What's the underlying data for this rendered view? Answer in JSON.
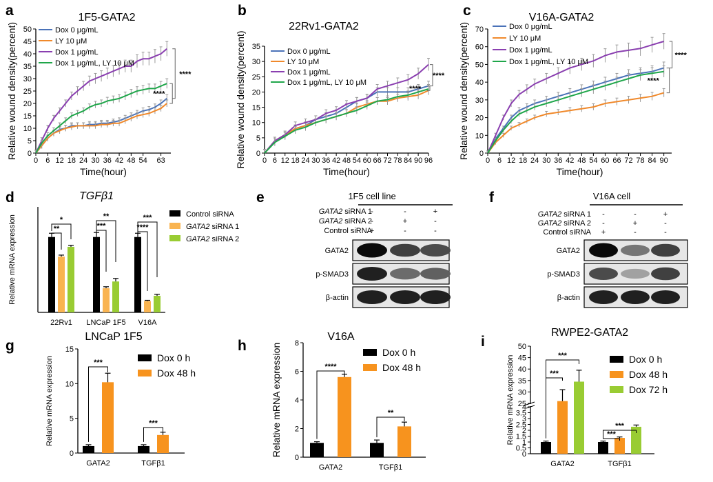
{
  "panels": {
    "a": {
      "label": "a",
      "title": "1F5-GATA2"
    },
    "b": {
      "label": "b",
      "title": "22Rv1-GATA2"
    },
    "c": {
      "label": "c",
      "title": "V16A-GATA2"
    },
    "d": {
      "label": "d",
      "title": "TGFβ1"
    },
    "e": {
      "label": "e",
      "title": "1F5 cell line"
    },
    "f": {
      "label": "f",
      "title": "V16A cell"
    },
    "g": {
      "label": "g",
      "title": "LNCaP 1F5"
    },
    "h": {
      "label": "h",
      "title": "V16A"
    },
    "i": {
      "label": "i",
      "title": "RWPE2-GATA2"
    }
  },
  "colors": {
    "dox0": "#4a72b8",
    "ly": "#f0892b",
    "dox1": "#8a3fb0",
    "combo": "#1fa64a",
    "black": "#000000",
    "orange_bar": "#f7931e",
    "light_orange": "#f9b451",
    "light_green": "#99cc33",
    "error": "#999999"
  },
  "chart_data": [
    {
      "id": "a",
      "type": "line",
      "title": "1F5-GATA2",
      "xlabel": "Time(hour)",
      "ylabel": "Relative wound density(percent)",
      "xlim": [
        0,
        68
      ],
      "ylim": [
        0,
        50
      ],
      "xticks": [
        0,
        6,
        12,
        18,
        24,
        30,
        36,
        42,
        48,
        54,
        63
      ],
      "yticks": [
        0,
        5,
        10,
        15,
        20,
        25,
        30,
        35,
        40,
        45,
        50
      ],
      "legend_position": "top-left",
      "series": [
        {
          "name": "Dox 0 μg/mL",
          "color_key": "dox0",
          "x": [
            0,
            3,
            6,
            9,
            12,
            15,
            18,
            21,
            24,
            27,
            30,
            33,
            36,
            39,
            42,
            45,
            48,
            51,
            54,
            57,
            60,
            63,
            66
          ],
          "y": [
            0,
            3,
            6,
            8,
            9.5,
            10,
            11,
            11,
            11,
            11.5,
            11.5,
            12,
            12,
            12.5,
            13,
            14,
            15,
            16,
            17,
            17.5,
            18.5,
            20,
            22
          ]
        },
        {
          "name": "LY 10 μM",
          "color_key": "ly",
          "x": [
            0,
            3,
            6,
            9,
            12,
            15,
            18,
            21,
            24,
            27,
            30,
            33,
            36,
            39,
            42,
            45,
            48,
            51,
            54,
            57,
            60,
            63,
            66
          ],
          "y": [
            0,
            3,
            6,
            8,
            9,
            10,
            10.5,
            11,
            11,
            11,
            11,
            11.5,
            11.5,
            12,
            12,
            13,
            14,
            15,
            15.5,
            16,
            17,
            18,
            20
          ]
        },
        {
          "name": "Dox 1 μg/mL",
          "color_key": "dox1",
          "x": [
            0,
            3,
            6,
            9,
            12,
            15,
            18,
            21,
            24,
            27,
            30,
            33,
            36,
            39,
            42,
            45,
            48,
            51,
            54,
            57,
            60,
            63,
            66
          ],
          "y": [
            0,
            5,
            10,
            14,
            17,
            20,
            23,
            25,
            27,
            29,
            30,
            31,
            32,
            33,
            34,
            35,
            35,
            37,
            38,
            38,
            39,
            40,
            42
          ]
        },
        {
          "name": "Dox 1 μg/mL, LY 10 μM",
          "color_key": "combo",
          "x": [
            0,
            3,
            6,
            9,
            12,
            15,
            18,
            21,
            24,
            27,
            30,
            33,
            36,
            39,
            42,
            45,
            48,
            51,
            54,
            57,
            60,
            63,
            66
          ],
          "y": [
            0,
            4,
            7,
            9,
            11,
            13,
            15,
            16,
            17,
            18.5,
            19.5,
            20,
            21,
            21.5,
            22,
            23,
            24,
            25,
            25.5,
            26,
            26,
            27,
            28
          ]
        }
      ],
      "annotations": [
        "****",
        "****"
      ]
    },
    {
      "id": "b",
      "type": "line",
      "title": "22Rv1-GATA2",
      "xlabel": "Time(hour)",
      "ylabel": "Relative wound density(percent)",
      "xlim": [
        0,
        96
      ],
      "ylim": [
        0,
        35
      ],
      "xticks": [
        0,
        6,
        12,
        18,
        24,
        30,
        36,
        42,
        48,
        54,
        60,
        66,
        72,
        78,
        84,
        90,
        96
      ],
      "yticks": [
        0,
        5,
        10,
        15,
        20,
        25,
        30,
        35
      ],
      "legend_position": "top-left",
      "series": [
        {
          "name": "Dox 0 μg/mL",
          "color_key": "dox0",
          "x": [
            0,
            6,
            12,
            18,
            24,
            30,
            36,
            42,
            48,
            54,
            60,
            66,
            72,
            78,
            84,
            90,
            96
          ],
          "y": [
            0,
            4,
            6,
            8,
            9,
            11,
            12,
            13,
            15,
            17,
            18,
            20,
            20,
            20,
            20,
            21,
            22
          ]
        },
        {
          "name": "LY 10 μM",
          "color_key": "ly",
          "x": [
            0,
            6,
            12,
            18,
            24,
            30,
            36,
            42,
            48,
            54,
            60,
            66,
            72,
            78,
            84,
            90,
            96
          ],
          "y": [
            0,
            4,
            6,
            8,
            9,
            10,
            11,
            12,
            13,
            15,
            16,
            17,
            17,
            18,
            18.5,
            19,
            20.5
          ]
        },
        {
          "name": "Dox 1 μg/mL",
          "color_key": "dox1",
          "x": [
            0,
            6,
            12,
            18,
            24,
            30,
            36,
            42,
            48,
            54,
            60,
            66,
            72,
            78,
            84,
            90,
            96
          ],
          "y": [
            0,
            4,
            6,
            9,
            10,
            11,
            13,
            14,
            16,
            17,
            18,
            21,
            22,
            23,
            24,
            26,
            29
          ]
        },
        {
          "name": "Dox 1 μg/mL, LY 10 μM",
          "color_key": "combo",
          "x": [
            0,
            6,
            12,
            18,
            24,
            30,
            36,
            42,
            48,
            54,
            60,
            66,
            72,
            78,
            84,
            90,
            96
          ],
          "y": [
            0,
            3.5,
            5.5,
            7.5,
            8.5,
            10,
            11,
            12,
            13,
            14,
            15.5,
            17,
            17.5,
            18.5,
            19,
            20,
            21
          ]
        }
      ],
      "annotations": [
        "****",
        "****"
      ]
    },
    {
      "id": "c",
      "type": "line",
      "title": "V16A-GATA2",
      "xlabel": "Time(hour)",
      "ylabel": "Relative wound density(percent)",
      "xlim": [
        0,
        94
      ],
      "ylim": [
        0,
        70
      ],
      "xticks": [
        0,
        6,
        12,
        18,
        24,
        30,
        36,
        42,
        48,
        54,
        60,
        66,
        72,
        78,
        84,
        90
      ],
      "yticks": [
        0,
        10,
        20,
        30,
        40,
        50,
        60,
        70
      ],
      "legend_position": "top-left",
      "series": [
        {
          "name": "Dox 0 μg/mL",
          "color_key": "dox0",
          "x": [
            0,
            4,
            8,
            12,
            16,
            20,
            24,
            30,
            36,
            42,
            48,
            54,
            60,
            66,
            72,
            78,
            84,
            90
          ],
          "y": [
            0,
            8,
            14,
            20,
            24,
            26,
            28,
            30,
            32,
            34,
            36,
            38,
            40,
            42,
            44,
            45,
            46,
            48
          ]
        },
        {
          "name": "LY 10 μM",
          "color_key": "ly",
          "x": [
            0,
            4,
            8,
            12,
            16,
            20,
            24,
            30,
            36,
            42,
            48,
            54,
            60,
            66,
            72,
            78,
            84,
            90
          ],
          "y": [
            0,
            6,
            10,
            14,
            16,
            18,
            20,
            22,
            23,
            24,
            25,
            26,
            28,
            29,
            30,
            31,
            32,
            34
          ]
        },
        {
          "name": "Dox 1 μg/mL",
          "color_key": "dox1",
          "x": [
            0,
            4,
            8,
            12,
            16,
            20,
            24,
            30,
            36,
            42,
            48,
            54,
            60,
            66,
            72,
            78,
            84,
            90
          ],
          "y": [
            0,
            10,
            20,
            28,
            33,
            36,
            39,
            42,
            45,
            48,
            50,
            52,
            55,
            57,
            58,
            59,
            61,
            63
          ]
        },
        {
          "name": "Dox 1 μg/mL, LY 10 μM",
          "color_key": "combo",
          "x": [
            0,
            4,
            8,
            12,
            16,
            20,
            24,
            30,
            36,
            42,
            48,
            54,
            60,
            66,
            72,
            78,
            84,
            90
          ],
          "y": [
            0,
            7,
            13,
            18,
            22,
            24,
            26,
            28,
            30,
            32,
            34,
            36,
            38,
            40,
            42,
            44,
            45,
            46
          ]
        }
      ],
      "annotations": [
        "****",
        "****"
      ]
    },
    {
      "id": "d",
      "type": "bar",
      "title": "TGFβ1",
      "ylabel": "Relative mRNA expression",
      "categories": [
        "22Rv1",
        "LNCaP 1F5",
        "V16A"
      ],
      "ylim": [
        0,
        1.4
      ],
      "series": [
        {
          "name": "Control siRNA",
          "color_key": "black",
          "values": [
            1.0,
            1.0,
            1.0
          ],
          "errors": [
            0.05,
            0.06,
            0.05
          ]
        },
        {
          "name": "GATA2 siRNA 1",
          "color_key": "light_orange",
          "values": [
            0.74,
            0.32,
            0.15
          ],
          "errors": [
            0.02,
            0.02,
            0.01
          ]
        },
        {
          "name": "GATA2 siRNA 2",
          "color_key": "light_green",
          "values": [
            0.87,
            0.41,
            0.22
          ],
          "errors": [
            0.02,
            0.04,
            0.02
          ]
        }
      ],
      "annotations": [
        "*",
        "**",
        "***",
        "**",
        "****",
        "***"
      ]
    },
    {
      "id": "g",
      "type": "bar",
      "title": "LNCaP 1F5",
      "ylabel": "Relative mRNA expression",
      "categories": [
        "GATA2",
        "TGFβ1"
      ],
      "ylim": [
        0,
        15
      ],
      "yticks": [
        0,
        5,
        10,
        15
      ],
      "series": [
        {
          "name": "Dox 0 h",
          "color_key": "black",
          "values": [
            1.0,
            1.0
          ],
          "errors": [
            0.2,
            0.2
          ]
        },
        {
          "name": "Dox 48 h",
          "color_key": "orange_bar",
          "values": [
            10.2,
            2.6
          ],
          "errors": [
            1.3,
            0.4
          ]
        }
      ],
      "annotations": [
        "***",
        "***"
      ]
    },
    {
      "id": "h",
      "type": "bar",
      "title": "V16A",
      "ylabel": "Relative mRNA expression",
      "categories": [
        "GATA2",
        "TGFβ1"
      ],
      "ylim": [
        0,
        8
      ],
      "yticks": [
        0,
        2,
        4,
        6,
        8
      ],
      "series": [
        {
          "name": "Dox 0 h",
          "color_key": "black",
          "values": [
            1.0,
            1.0
          ],
          "errors": [
            0.08,
            0.2
          ]
        },
        {
          "name": "Dox 48 h",
          "color_key": "orange_bar",
          "values": [
            5.6,
            2.15
          ],
          "errors": [
            0.2,
            0.3
          ]
        }
      ],
      "annotations": [
        "****",
        "**"
      ]
    },
    {
      "id": "i",
      "type": "bar",
      "title": "RWPE2-GATA2",
      "ylabel": "Relative mRNA expression",
      "categories": [
        "GATA2",
        "TGFβ1"
      ],
      "ylim": [
        0,
        50
      ],
      "axis_break": [
        4,
        25
      ],
      "yticks": [
        0,
        0.5,
        1,
        1.5,
        2,
        2.5,
        3,
        3.5,
        4,
        25,
        30,
        35,
        40,
        45,
        50
      ],
      "ytick_labels": [
        "0",
        "0.5",
        "1",
        "1.5",
        "2",
        "2.5",
        "3",
        "3.5",
        "4",
        "25",
        "30",
        "35",
        "40",
        "45",
        "50"
      ],
      "series": [
        {
          "name": "Dox 0 h",
          "color_key": "black",
          "values": [
            1.0,
            1.0
          ],
          "errors": [
            0.08,
            0.08
          ]
        },
        {
          "name": "Dox 48 h",
          "color_key": "orange_bar",
          "values": [
            26,
            1.35
          ],
          "errors": [
            5,
            0.08
          ]
        },
        {
          "name": "Dox 72 h",
          "color_key": "light_green",
          "values": [
            34.5,
            2.3
          ],
          "errors": [
            5,
            0.15
          ]
        }
      ],
      "annotations": [
        "***",
        "***",
        "***",
        "***"
      ]
    }
  ],
  "blots": {
    "e": {
      "title": "1F5 cell line",
      "conditions": [
        {
          "label": "GATA2 siRNA 1",
          "italic_part": "GATA2",
          "rest": " siRNA 1",
          "marks": [
            "-",
            "-",
            "+"
          ]
        },
        {
          "label": "GATA2 siRNA 2",
          "italic_part": "GATA2",
          "rest": " siRNA 2",
          "marks": [
            "-",
            "+",
            "-"
          ]
        },
        {
          "label": "Control siRNA",
          "italic_part": "",
          "rest": "Control siRNA",
          "marks": [
            "+",
            "-",
            "-"
          ]
        }
      ],
      "bands": [
        {
          "label": "GATA2",
          "intensity": [
            1.0,
            0.75,
            0.7
          ]
        },
        {
          "label": "p-SMAD3",
          "intensity": [
            0.9,
            0.55,
            0.6
          ]
        },
        {
          "label": "β-actin",
          "intensity": [
            0.9,
            0.9,
            0.9
          ]
        }
      ]
    },
    "f": {
      "title": "V16A cell",
      "conditions": [
        {
          "label": "GATA2 siRNA 1",
          "italic_part": "GATA2",
          "rest": " siRNA 1",
          "marks": [
            "-",
            "-",
            "+"
          ]
        },
        {
          "label": "GATA2 siRNA 2",
          "italic_part": "GATA2",
          "rest": " siRNA 2",
          "marks": [
            "-",
            "+",
            "-"
          ]
        },
        {
          "label": "Control siRNA",
          "italic_part": "",
          "rest": "Control siRNA",
          "marks": [
            "+",
            "-",
            "-"
          ]
        }
      ],
      "bands": [
        {
          "label": "GATA2",
          "intensity": [
            1.0,
            0.5,
            0.75
          ]
        },
        {
          "label": "p-SMAD3",
          "intensity": [
            0.7,
            0.3,
            0.75
          ]
        },
        {
          "label": "β-actin",
          "intensity": [
            0.9,
            0.9,
            0.9
          ]
        }
      ]
    }
  }
}
